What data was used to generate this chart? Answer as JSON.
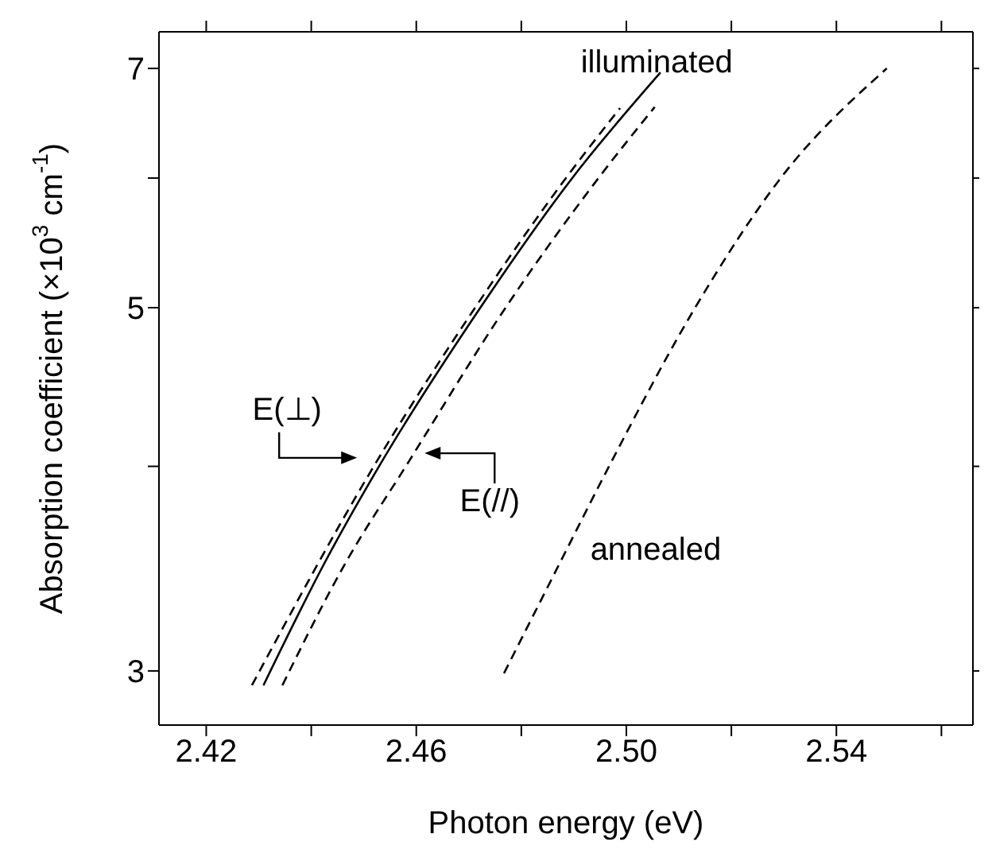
{
  "chart_data": {
    "type": "line",
    "xlabel": "Photon energy (eV)",
    "ylabel": "Absorption coefficient (×10$^{3}$ cm$^{-1}$)",
    "log": "y",
    "marker": "none",
    "xlim": [
      2.411,
      2.566
    ],
    "xticks": [
      2.42,
      {
        "value": 2.44,
        "label": null
      },
      2.46,
      {
        "value": 2.48,
        "label": null
      },
      "2.50",
      {
        "value": 2.52,
        "label": null
      },
      2.54,
      {
        "value": 2.56,
        "label": null
      }
    ],
    "ylim": [
      2.78,
      7.37
    ],
    "yticks": [
      3,
      {
        "value": 4,
        "label": null
      },
      5,
      {
        "value": 6,
        "label": null
      },
      7
    ],
    "series": [
      {
        "color": "#000000",
        "line_style": "dashed",
        "x": [
          2.4287,
          2.4519,
          2.4712,
          2.4885,
          2.4988
        ],
        "values": [
          2.94,
          4,
          5,
          6,
          6.62
        ]
      },
      {
        "color": "#000000",
        "line_style": "solid",
        "x": [
          2.4309,
          2.4427,
          2.4529,
          2.4722,
          2.4897,
          2.5065
        ],
        "values": [
          2.94,
          3.5,
          4,
          5,
          6,
          6.96
        ]
      },
      {
        "color": "#000000",
        "line_style": "dashed",
        "x": [
          2.4345,
          2.4467,
          2.458,
          2.477,
          2.4947,
          2.5054
        ],
        "values": [
          2.94,
          3.5,
          4,
          5,
          6,
          6.63
        ]
      },
      {
        "color": "#000000",
        "line_style": "dashed",
        "x": [
          2.4767,
          2.4875,
          2.4967,
          2.5131,
          2.5294,
          2.5496
        ],
        "values": [
          2.99,
          3.5,
          4,
          5,
          6,
          7
        ]
      }
    ],
    "annotations": [
      "illuminated",
      "E(⊥)",
      "E(//)",
      "annealed"
    ]
  }
}
